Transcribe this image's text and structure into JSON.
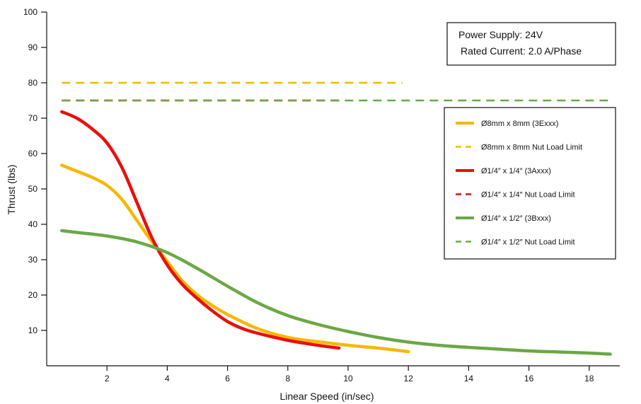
{
  "chart_data": {
    "type": "line",
    "xlabel": "Linear Speed (in/sec)",
    "ylabel": "Thrust (lbs)",
    "xlim": [
      0,
      20
    ],
    "ylim": [
      0,
      100
    ],
    "x_ticks": [
      2,
      4,
      6,
      8,
      10,
      12,
      14,
      16,
      18
    ],
    "y_ticks": [
      10,
      20,
      30,
      40,
      50,
      60,
      70,
      80,
      90,
      100
    ],
    "grid": false,
    "legend_position": "right",
    "annotation": {
      "lines": [
        "Power Supply: 24V",
        "Rated Current: 2.0 A/Phase"
      ],
      "position": "top-right"
    },
    "series": [
      {
        "name": "Ø8mm x 8mm (3Exxx)",
        "style": "solid",
        "color": "#f5b800",
        "points": [
          [
            0.5,
            56.7
          ],
          [
            1.0,
            55.0
          ],
          [
            1.5,
            53.3
          ],
          [
            2.0,
            51.0
          ],
          [
            2.5,
            47.0
          ],
          [
            3.0,
            41.0
          ],
          [
            3.5,
            35.0
          ],
          [
            4.0,
            29.5
          ],
          [
            4.5,
            24.0
          ],
          [
            5.0,
            20.0
          ],
          [
            5.5,
            17.0
          ],
          [
            6.0,
            14.5
          ],
          [
            7.0,
            10.5
          ],
          [
            8.0,
            8.0
          ],
          [
            9.0,
            6.8
          ],
          [
            10.0,
            5.8
          ],
          [
            11.0,
            5.0
          ],
          [
            12.0,
            4.0
          ]
        ]
      },
      {
        "name": "Ø8mm x 8mm  Nut Load Limit",
        "style": "dashed",
        "color": "#f5b800",
        "points": [
          [
            0.5,
            80
          ],
          [
            11.8,
            80
          ]
        ]
      },
      {
        "name": "Ø1/4″ x 1/4″ (3Axxx)",
        "style": "solid",
        "color": "#e8100c",
        "points": [
          [
            0.5,
            71.8
          ],
          [
            1.0,
            70.0
          ],
          [
            1.5,
            67.0
          ],
          [
            2.0,
            63.0
          ],
          [
            2.5,
            56.0
          ],
          [
            3.0,
            46.0
          ],
          [
            3.5,
            36.0
          ],
          [
            4.0,
            28.5
          ],
          [
            4.5,
            23.0
          ],
          [
            5.0,
            19.0
          ],
          [
            5.5,
            15.5
          ],
          [
            6.0,
            12.5
          ],
          [
            6.5,
            10.5
          ],
          [
            7.0,
            9.2
          ],
          [
            8.0,
            7.2
          ],
          [
            9.0,
            5.8
          ],
          [
            9.7,
            5.0
          ]
        ]
      },
      {
        "name": "Ø1/4″ x 1/4″ Nut Load Limit",
        "style": "dashed",
        "color": "#e8100c",
        "points": [
          [
            0.5,
            75
          ],
          [
            9.7,
            75
          ]
        ]
      },
      {
        "name": "Ø1/4″ x 1/2″ (3Bxxx)",
        "style": "solid",
        "color": "#6aa844",
        "points": [
          [
            0.5,
            38.2
          ],
          [
            1.0,
            37.7
          ],
          [
            2.0,
            36.7
          ],
          [
            3.0,
            35.0
          ],
          [
            4.0,
            32.0
          ],
          [
            5.0,
            27.5
          ],
          [
            6.0,
            22.5
          ],
          [
            7.0,
            17.8
          ],
          [
            8.0,
            14.2
          ],
          [
            9.0,
            11.7
          ],
          [
            10.0,
            9.7
          ],
          [
            11.0,
            8.0
          ],
          [
            12.0,
            6.7
          ],
          [
            13.0,
            5.8
          ],
          [
            14.0,
            5.2
          ],
          [
            15.0,
            4.7
          ],
          [
            16.0,
            4.2
          ],
          [
            17.0,
            3.9
          ],
          [
            18.0,
            3.6
          ],
          [
            18.7,
            3.3
          ]
        ]
      },
      {
        "name": "Ø1/4″ x 1/2″  Nut Load Limit",
        "style": "dashed",
        "color": "#6aa844",
        "points": [
          [
            0.5,
            75
          ],
          [
            18.7,
            75
          ]
        ]
      }
    ]
  }
}
